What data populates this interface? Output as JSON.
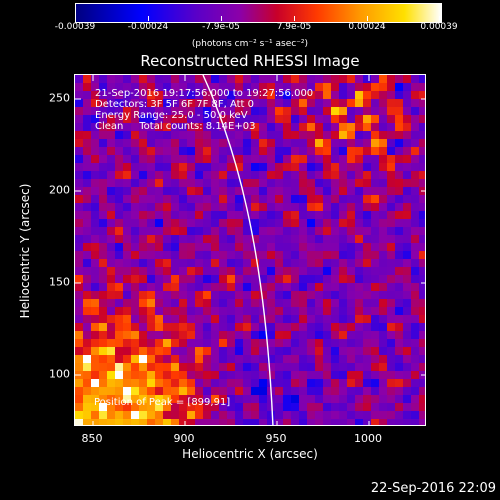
{
  "colorbar": {
    "tick_labels": [
      "-0.00039",
      "-0.00024",
      "-7.9e-05",
      "7.9e-05",
      "0.00024",
      "0.00039"
    ],
    "units": "(photons cm⁻² s⁻¹ asec⁻²)"
  },
  "title": "Reconstructed RHESSI Image",
  "info": {
    "time_range": "21-Sep-2016 19:17:56.000 to 19:27:56.000",
    "detectors": "Detectors: 3F 5F 6F 7F 8F, Att 0",
    "energy": "Energy Range: 25.0 - 50.0 keV",
    "clean": "Clean     Total counts: 8.14E+03"
  },
  "peak_label": "Position of Peak = [899,91]",
  "x_axis": {
    "label": "Heliocentric X (arcsec)",
    "ticks": [
      "850",
      "900",
      "950",
      "1000"
    ]
  },
  "y_axis": {
    "label": "Heliocentric Y (arcsec)",
    "ticks": [
      "100",
      "150",
      "200",
      "250"
    ]
  },
  "date_stamp": "22-Sep-2016 22:09"
}
